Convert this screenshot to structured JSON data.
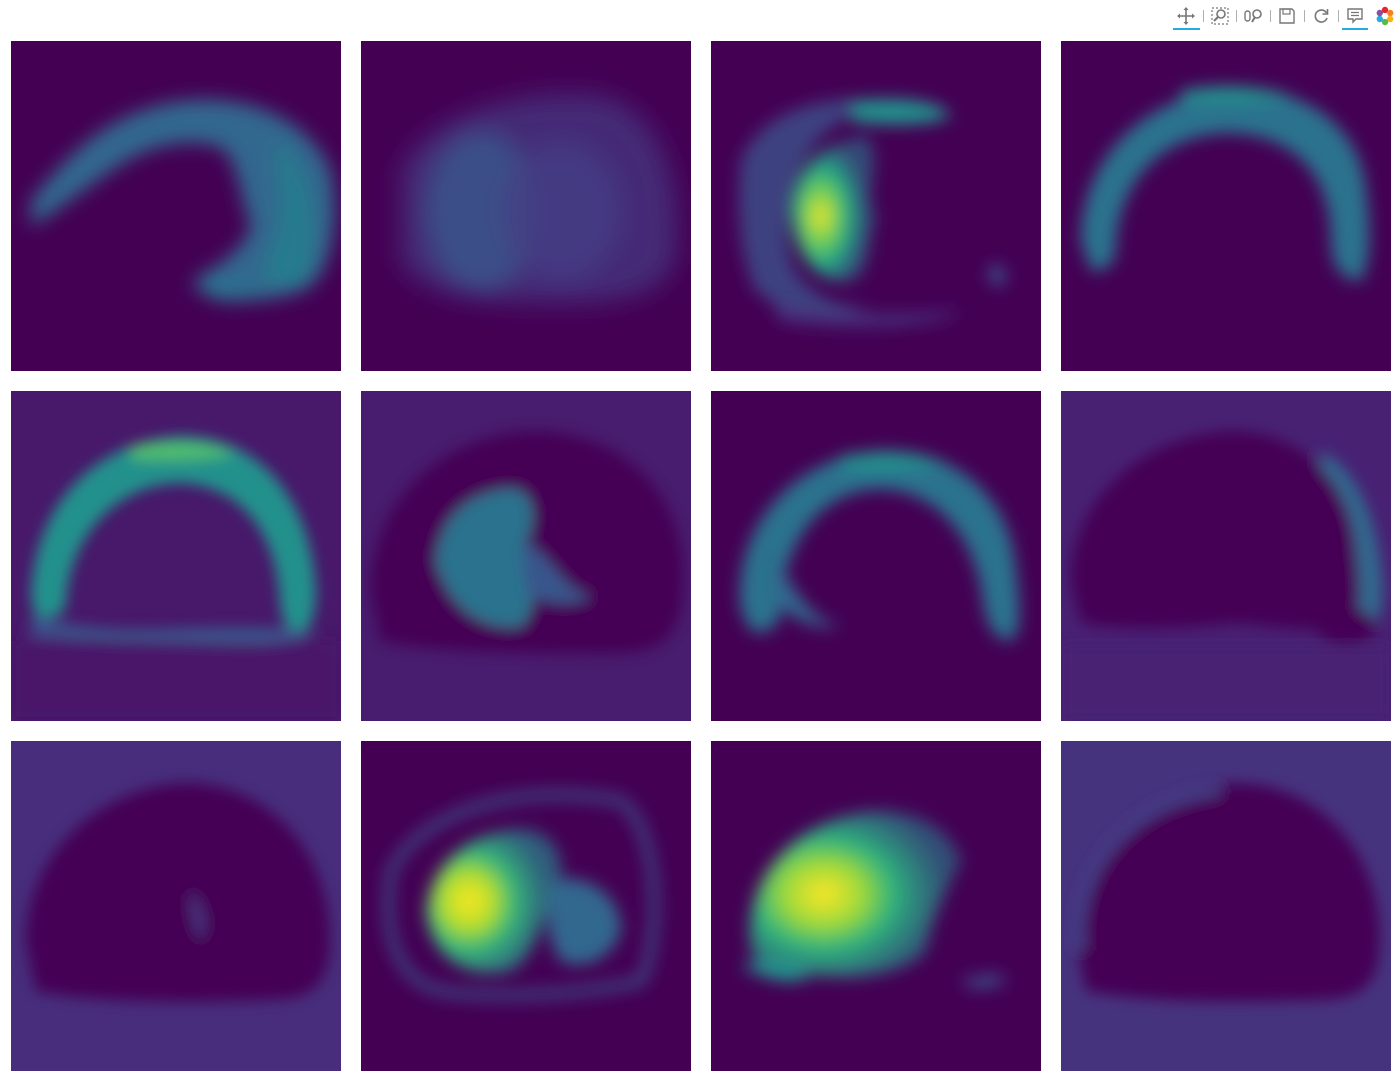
{
  "toolbar": {
    "tools": [
      {
        "name": "pan-tool",
        "icon": "pan-icon",
        "active": true
      },
      {
        "name": "box-zoom-tool",
        "icon": "box-zoom-icon",
        "active": false
      },
      {
        "name": "wheel-zoom-tool",
        "icon": "wheel-zoom-icon",
        "active": false
      },
      {
        "name": "save-tool",
        "icon": "save-icon",
        "active": false
      },
      {
        "name": "reset-tool",
        "icon": "reset-icon",
        "active": false
      },
      {
        "name": "hover-tool",
        "icon": "hover-icon",
        "active": true
      },
      {
        "name": "bokeh-logo",
        "icon": "bokeh-logo-icon",
        "active": false
      }
    ],
    "accent_color": "#26aae1"
  },
  "colormap": "viridis",
  "colors": {
    "viridis_dark": "#440154",
    "viridis_blue": "#3b528b",
    "viridis_teal": "#21918c",
    "viridis_green": "#5ec962",
    "viridis_yellow": "#fde725"
  },
  "grid": {
    "rows": 3,
    "cols": 4,
    "panel_count": 12
  }
}
